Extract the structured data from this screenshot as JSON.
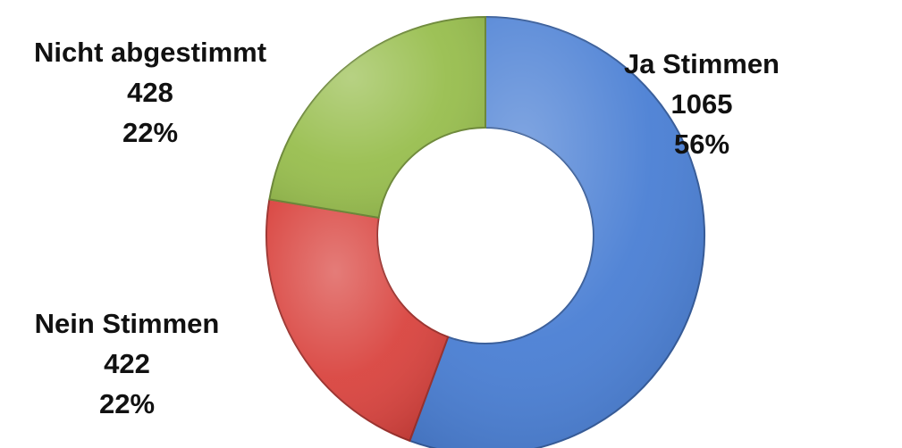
{
  "chart_data": {
    "type": "pie",
    "donut": true,
    "title": "",
    "slices": [
      {
        "label": "Ja Stimmen",
        "value": 1065,
        "percent": "56%",
        "color": "#4a7fd4"
      },
      {
        "label": "Nein Stimmen",
        "value": 422,
        "percent": "22%",
        "color": "#d9443f"
      },
      {
        "label": "Nicht abgestimmt",
        "value": 428,
        "percent": "22%",
        "color": "#98be4e"
      }
    ],
    "legend": "none"
  }
}
